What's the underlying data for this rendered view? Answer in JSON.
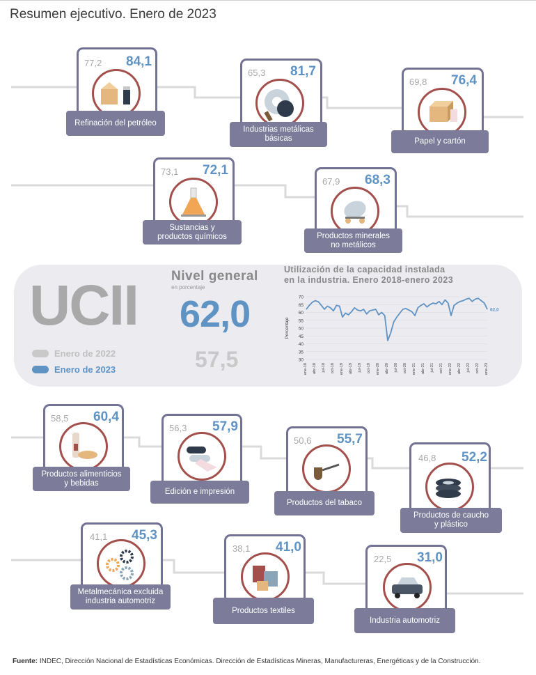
{
  "title": "Resumen ejecutivo. Enero de 2023",
  "colors": {
    "card_border": "#727295",
    "label_bg": "#7c7c9a",
    "circle": "#a34f4b",
    "value_2023": "#5f93c4",
    "value_2022": "#a8a8a8",
    "line": "#5f93c4"
  },
  "sectors": [
    {
      "name": "Refinación del petróleo",
      "value_2022": "77,2",
      "value_2023": "84,1",
      "icon": "oil-refinery-icon"
    },
    {
      "name": "Industrias metálicas\nbásicas",
      "value_2022": "65,3",
      "value_2023": "81,7",
      "icon": "metal-coils-icon"
    },
    {
      "name": "Papel y cartón",
      "value_2022": "69,8",
      "value_2023": "76,4",
      "icon": "cardboard-box-icon"
    },
    {
      "name": "Sustancias y\nproductos químicos",
      "value_2022": "73,1",
      "value_2023": "72,1",
      "icon": "flask-icon"
    },
    {
      "name": "Productos minerales\nno metálicos",
      "value_2022": "67,9",
      "value_2023": "68,3",
      "icon": "cement-mixer-icon"
    },
    {
      "name": "Productos alimenticios\ny bebidas",
      "value_2022": "58,5",
      "value_2023": "60,4",
      "icon": "bottle-bread-icon"
    },
    {
      "name": "Edición e impresión",
      "value_2022": "56,3",
      "value_2023": "57,9",
      "icon": "paper-rolls-icon"
    },
    {
      "name": "Productos del tabaco",
      "value_2022": "50,6",
      "value_2023": "55,7",
      "icon": "pipe-icon"
    },
    {
      "name": "Productos de caucho\ny plástico",
      "value_2022": "46,8",
      "value_2023": "52,2",
      "icon": "tire-stack-icon"
    },
    {
      "name": "Metalmecánica excluida\nindustria automotriz",
      "value_2022": "41,1",
      "value_2023": "45,3",
      "icon": "gears-icon"
    },
    {
      "name": "Productos textiles",
      "value_2022": "38,1",
      "value_2023": "41,0",
      "icon": "thread-spools-icon"
    },
    {
      "name": "Industria automotriz",
      "value_2022": "22,5",
      "value_2023": "31,0",
      "icon": "car-icon"
    }
  ],
  "ucii": {
    "acronym": "UCII",
    "legend_2022": "Enero de 2022",
    "legend_2023": "Enero de 2023",
    "nivel_title": "Nivel general",
    "nivel_sub": "en porcentaje",
    "value_2023": "62,0",
    "value_2022": "57,5"
  },
  "chart_data": {
    "type": "line",
    "title": "Utilización de la capacidad instalada\nen la industria. Enero 2018-enero 2023",
    "ylabel": "Porcentaje",
    "ylim": [
      30,
      70
    ],
    "yticks": [
      30,
      35,
      40,
      45,
      50,
      55,
      60,
      65,
      70
    ],
    "end_label": "62,0",
    "x_ticks": [
      "ene-18",
      "abr-18",
      "jul-18",
      "oct-18",
      "ene-19",
      "abr-19",
      "jul-19",
      "oct-19",
      "ene-20",
      "abr-20",
      "jul-20",
      "oct-20",
      "ene-21",
      "abr-21",
      "jul-21",
      "oct-21",
      "ene-22",
      "abr-22",
      "jul-22",
      "oct-22",
      "ene-23"
    ],
    "values": [
      62.0,
      64.5,
      66.5,
      67.5,
      66.8,
      64.5,
      62.0,
      64.0,
      63.0,
      61.0,
      64.5,
      64.0,
      57.0,
      59.5,
      58.5,
      60.5,
      63.0,
      61.5,
      61.0,
      62.0,
      59.0,
      61.0,
      61.5,
      62.0,
      58.5,
      60.0,
      58.0,
      42.0,
      47.0,
      54.0,
      57.0,
      59.5,
      62.0,
      62.5,
      61.5,
      60.5,
      58.0,
      63.0,
      64.5,
      65.5,
      63.5,
      65.0,
      66.0,
      65.5,
      67.0,
      65.0,
      68.0,
      66.0,
      58.0,
      64.5,
      66.0,
      67.0,
      67.5,
      68.5,
      69.0,
      67.0,
      68.5,
      69.0,
      67.5,
      66.0,
      62.0
    ]
  },
  "source": {
    "label": "Fuente:",
    "text": "INDEC, Dirección Nacional de Estadísticas Económicas. Dirección de Estadísticas Mineras, Manufactureras, Energéticas y de la Construcción."
  }
}
